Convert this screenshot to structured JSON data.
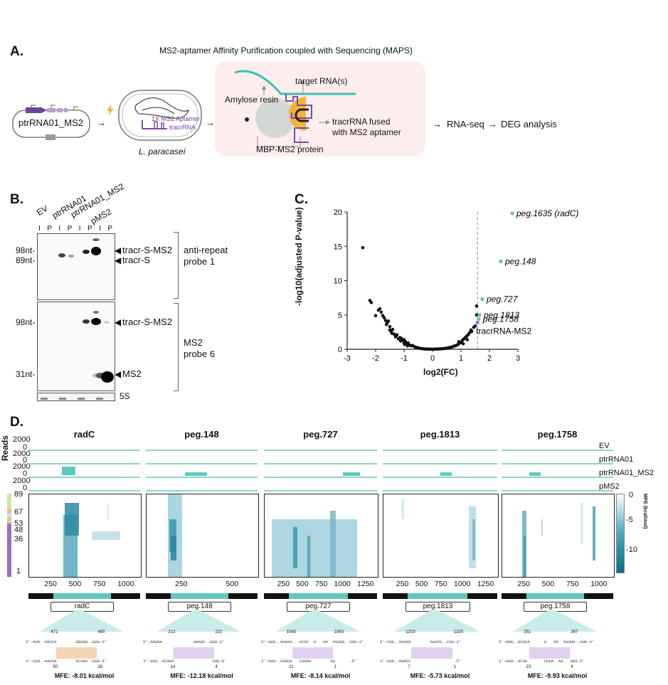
{
  "panelA": {
    "label": "A.",
    "title": "MS2-aptamer Affinity Purification coupled with Sequencing (MAPS)",
    "plasmid": "ptrRNA01_MS2",
    "cell_aptamer": "1X MS2 Aptamer",
    "cell_tracr": "tracrRNA",
    "organism": "L. paracasei",
    "amylose": "Amylose resin",
    "target": "target RNA(s)",
    "fused_line1": "tracrRNA fused",
    "fused_line2": "with MS2 aptamer",
    "protein": "MBP-MS2 protein",
    "rnaseq": "RNA-seq",
    "deg": "DEG analysis"
  },
  "panelB": {
    "label": "B.",
    "lanes": [
      "EV",
      "ptrRNA01",
      "ptrRNA01_MS2",
      "pMS2"
    ],
    "ip_labels": [
      "I",
      "P",
      "I",
      "P",
      "I",
      "P",
      "I",
      "P"
    ],
    "top_size1": "98nt-",
    "top_size2": "89nt-",
    "top_band1": "tracr-S-MS2",
    "top_band2": "tracr-S",
    "top_probe1": "anti-repeat",
    "top_probe2": "probe 1",
    "bot_size1": "98nt-",
    "bot_size2": "31nt-",
    "bot_band1": "tracr-S-MS2",
    "bot_band2": "MS2",
    "bot_probe1": "MS2",
    "bot_probe2": "probe 6",
    "loading": "5S"
  },
  "panelC": {
    "label": "C.",
    "ylabel": "-log10(adjusted P-value)",
    "xlabel": "log2(FC)",
    "labels": [
      "peg.1635 (radC)",
      "peg.148",
      "peg.727",
      "peg.1813",
      "peg.1758",
      "tracrRNA-MS2"
    ],
    "chart_data": {
      "type": "scatter",
      "xlim": [
        -3,
        3
      ],
      "ylim": [
        0,
        20
      ],
      "xticks": [
        -3,
        -2,
        -1,
        0,
        1,
        2,
        3
      ],
      "yticks": [
        0,
        5,
        10,
        15,
        20
      ],
      "threshold_x": 1.58,
      "highlight": [
        {
          "name": "peg.1635 (radC)",
          "x": 2.8,
          "y": 19.8,
          "color": "#5fc4b8"
        },
        {
          "name": "peg.148",
          "x": 2.4,
          "y": 12.8,
          "color": "#5fc4b8"
        },
        {
          "name": "peg.727",
          "x": 1.75,
          "y": 7.3,
          "color": "#5fc4b8"
        },
        {
          "name": "peg.1813",
          "x": 1.65,
          "y": 5.0,
          "color": "#5fc4b8"
        },
        {
          "name": "peg.1758",
          "x": 1.62,
          "y": 4.4,
          "color": "#5fc4b8"
        },
        {
          "name": "tracrRNA-MS2",
          "x": 1.58,
          "y": 3.9,
          "color": "#6a7fd0"
        }
      ],
      "points": [
        [
          -2.45,
          14.8
        ],
        [
          -2.2,
          7.1
        ],
        [
          -2.15,
          6.8
        ],
        [
          -1.85,
          5.9
        ],
        [
          -1.8,
          5.4
        ],
        [
          -1.75,
          4.9
        ],
        [
          -1.7,
          4.6
        ],
        [
          -1.65,
          4.2
        ],
        [
          -1.6,
          3.8
        ],
        [
          -1.55,
          4.1
        ],
        [
          -1.5,
          3.3
        ],
        [
          -1.5,
          2.8
        ],
        [
          -1.45,
          2.5
        ],
        [
          -1.4,
          2.9
        ],
        [
          -1.35,
          2.2
        ],
        [
          -1.3,
          1.8
        ],
        [
          -1.25,
          2.1
        ],
        [
          -1.2,
          1.5
        ],
        [
          -1.15,
          1.7
        ],
        [
          -1.1,
          1.6
        ],
        [
          -1.05,
          1.3
        ],
        [
          -1.0,
          1.4
        ],
        [
          -1.0,
          0.9
        ],
        [
          -0.95,
          1.1
        ],
        [
          -0.9,
          0.8
        ],
        [
          -0.85,
          0.9
        ],
        [
          -0.8,
          0.6
        ],
        [
          -0.75,
          0.5
        ],
        [
          -0.7,
          0.55
        ],
        [
          -0.65,
          0.4
        ],
        [
          -0.6,
          0.3
        ],
        [
          -0.55,
          0.25
        ],
        [
          -0.5,
          0.2
        ],
        [
          -0.45,
          0.15
        ],
        [
          -0.4,
          0.1
        ],
        [
          -0.35,
          0.08
        ],
        [
          -0.3,
          0.05
        ],
        [
          -0.25,
          0.04
        ],
        [
          -0.2,
          0.03
        ],
        [
          -0.15,
          0.02
        ],
        [
          -0.1,
          0.02
        ],
        [
          -0.05,
          0.01
        ],
        [
          0.0,
          0.01
        ],
        [
          0.05,
          0.01
        ],
        [
          0.1,
          0.02
        ],
        [
          0.15,
          0.03
        ],
        [
          0.2,
          0.03
        ],
        [
          0.25,
          0.05
        ],
        [
          0.3,
          0.06
        ],
        [
          0.35,
          0.08
        ],
        [
          0.4,
          0.1
        ],
        [
          0.45,
          0.12
        ],
        [
          0.5,
          0.15
        ],
        [
          0.55,
          0.2
        ],
        [
          0.6,
          0.25
        ],
        [
          0.65,
          0.3
        ],
        [
          0.7,
          0.35
        ],
        [
          0.75,
          0.45
        ],
        [
          0.8,
          0.5
        ],
        [
          0.85,
          0.6
        ],
        [
          0.9,
          0.7
        ],
        [
          0.95,
          0.9
        ],
        [
          1.0,
          1.0
        ],
        [
          1.05,
          1.3
        ],
        [
          1.1,
          1.5
        ],
        [
          1.15,
          1.7
        ],
        [
          1.2,
          1.9
        ],
        [
          1.25,
          2.1
        ],
        [
          1.3,
          2.4
        ],
        [
          1.35,
          2.8
        ],
        [
          1.45,
          3.2
        ],
        [
          1.5,
          3.4
        ],
        [
          1.55,
          5.0
        ],
        [
          1.55,
          6.3
        ],
        [
          -2.0,
          4.9
        ],
        [
          -1.9,
          5.7
        ],
        [
          -1.62,
          3.6
        ],
        [
          -1.42,
          2.3
        ],
        [
          -1.28,
          1.9
        ],
        [
          -1.12,
          1.2
        ],
        [
          -0.98,
          0.7
        ],
        [
          -0.88,
          0.5
        ],
        [
          0.92,
          1.1
        ],
        [
          1.08,
          0.8
        ],
        [
          1.22,
          1.4
        ],
        [
          1.38,
          2.6
        ]
      ]
    }
  },
  "panelD": {
    "label": "D.",
    "reads_label": "Reads",
    "track_names": [
      "EV",
      "ptrRNA01",
      "ptrRNA01_MS2",
      "pMS2"
    ],
    "read_ticks": [
      "2000",
      "0",
      "2000",
      "0",
      "2000",
      "0",
      "2000",
      "0"
    ],
    "scale_ticks": [
      "89",
      "67",
      "53",
      "48",
      "36",
      "1"
    ],
    "colorbar_ticks": [
      "0",
      "-5",
      "-10"
    ],
    "colorbar_label": "MFE (kcal/mol)",
    "genes": [
      {
        "name": "radC",
        "xticks": [
          "250",
          "500",
          "750",
          "1000"
        ],
        "gene": "radC",
        "pos_left": "471",
        "pos_right": "490",
        "top_seq": "5'-AUG..UGCCA        GGGGU..UAG-3'",
        "bot_seq": "3'-UUU..AACUA        ACGAU..UUG-5'",
        "bot_l": "50",
        "bot_r": "28",
        "mfe": "MFE: -8.01 kcal/mol"
      },
      {
        "name": "peg.148",
        "xticks": [
          "250",
          "500"
        ],
        "gene": "peg.148",
        "pos_left": "212",
        "pos_right": "222",
        "top_seq": "5'-AAUGA             UAAUC..GUU-3'",
        "bot_seq": "3'-UUU..ACAAA                UUG-5'",
        "bot_l": "14",
        "bot_r": "4",
        "mfe": "MFE: -12.18 kcal/mol"
      },
      {
        "name": "peg.727",
        "xticks": [
          "250",
          "500",
          "750",
          "1000",
          "1250"
        ],
        "gene": "peg.727",
        "pos_left": "1043",
        "pos_right": "1063",
        "top_seq": "5'-UUG..AAAAA   ACGC  A   UA  AGUUG..UUU-3'",
        "bot_seq": "3'-UUU..CGAUA   CAAAA        AG      -5'",
        "bot_l": "21",
        "bot_r": "1",
        "mfe": "MFE: -8.14 kcal/mol"
      },
      {
        "name": "peg.1813",
        "xticks": [
          "250",
          "500",
          "750",
          "1000",
          "1250"
        ],
        "gene": "peg.1813",
        "pos_left": "1219",
        "pos_right": "1225",
        "top_seq": "5'-CUG..UUAAA        AGACU..CGU-3'",
        "bot_seq": "3'-UUU..UUACC                  -5'",
        "bot_l": "7",
        "bot_r": "1",
        "mfe": "MFE: -5.73 kcal/mol"
      },
      {
        "name": "peg.1758",
        "xticks": [
          "250",
          "500",
          "750",
          "1000"
        ],
        "gene": "peg.1758",
        "pos_left": "251",
        "pos_right": "267",
        "top_seq": "5'-GGG..GCACA      U   GG  AUUUU..AUG-3'",
        "bot_seq": "3'-UUU..ACGA       CUUA  AA   UUG-5'",
        "bot_l": "23",
        "bot_r": "4",
        "mfe": "MFE: -9.93 kcal/mol"
      }
    ]
  }
}
